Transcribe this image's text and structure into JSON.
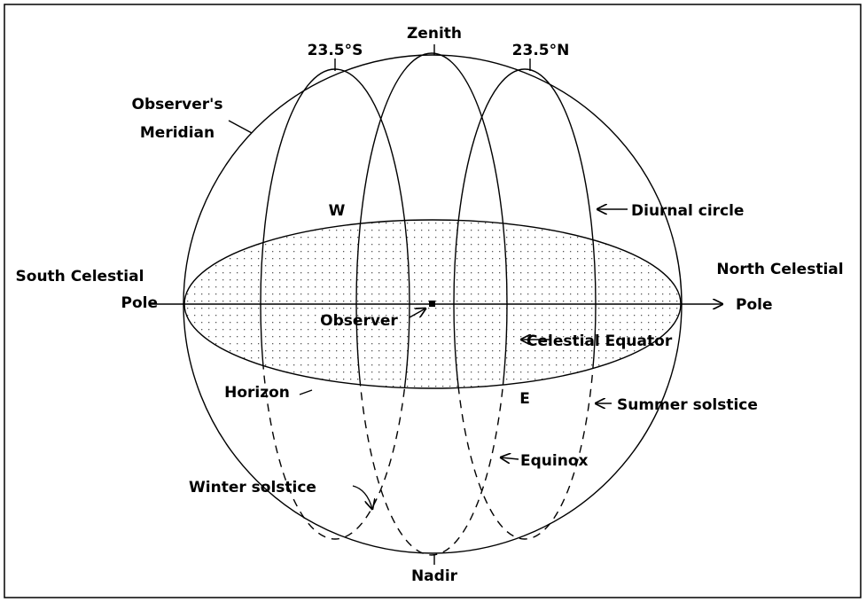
{
  "labels": {
    "s_tropic": "23.5°S",
    "zenith": "Zenith",
    "n_tropic": "23.5°N",
    "meridian": [
      "Observer's",
      "Meridian"
    ],
    "west": "W",
    "diurnal_circle": "Diurnal circle",
    "south_pole": [
      "South Celestial",
      "Pole"
    ],
    "north_pole": [
      "North Celestial",
      "Pole"
    ],
    "observer": "Observer",
    "celestial_equator": "Celestial Equator",
    "horizon": "Horizon",
    "east": "E",
    "summer_solstice": "Summer solstice",
    "equinox": "Equinox",
    "winter_solstice": "Winter solstice",
    "nadir": "Nadir"
  }
}
